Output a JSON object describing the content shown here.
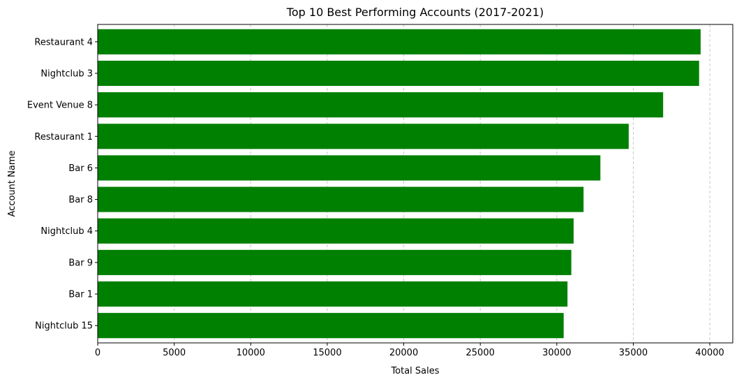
{
  "chart_data": {
    "type": "bar",
    "orientation": "horizontal",
    "title": "Top 10 Best Performing Accounts (2017-2021)",
    "xlabel": "Total Sales",
    "ylabel": "Account Name",
    "categories": [
      "Restaurant 4",
      "Nightclub 3",
      "Event Venue 8",
      "Restaurant 1",
      "Bar 6",
      "Bar 8",
      "Nightclub 4",
      "Bar 9",
      "Bar 1",
      "Nightclub 15"
    ],
    "values": [
      39400,
      39300,
      36950,
      34700,
      32850,
      31750,
      31100,
      30950,
      30700,
      30450
    ],
    "xlim": [
      0,
      41500
    ],
    "xticks": [
      0,
      5000,
      10000,
      15000,
      20000,
      25000,
      30000,
      35000,
      40000
    ],
    "bar_color": "#008000",
    "grid": {
      "x": true,
      "y": false,
      "style": "dashed",
      "color": "#c8c8c8"
    }
  }
}
